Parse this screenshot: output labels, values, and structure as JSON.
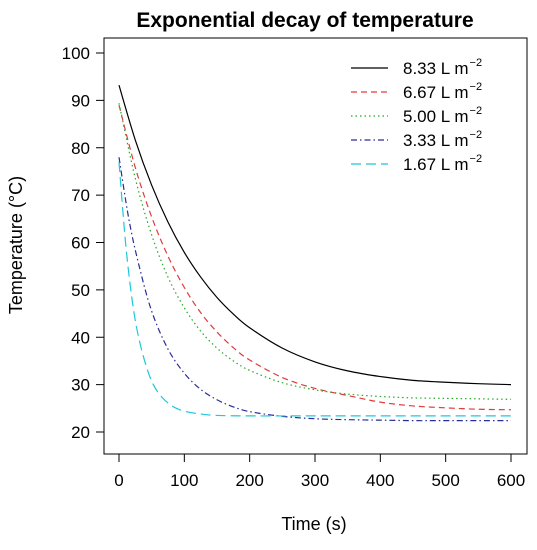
{
  "chart_data": {
    "type": "line",
    "title": "Exponential decay of temperature",
    "xlabel": "Time (s)",
    "ylabel": "Temperature (°C)",
    "xlim": [
      0,
      600
    ],
    "ylim": [
      20,
      100
    ],
    "xticks": [
      0,
      100,
      200,
      300,
      400,
      500,
      600
    ],
    "yticks": [
      20,
      30,
      40,
      50,
      60,
      70,
      80,
      90,
      100
    ],
    "grid": false,
    "legend_position": "top-right",
    "series": [
      {
        "name": "8.33 L m",
        "name_sup": "−2",
        "color": "#000000",
        "dash": "solid",
        "x": [
          0,
          25,
          50,
          75,
          100,
          125,
          150,
          175,
          200,
          250,
          300,
          350,
          400,
          450,
          500,
          550,
          600
        ],
        "y": [
          93.2,
          81.6,
          72.1,
          64.3,
          57.9,
          52.7,
          48.4,
          44.9,
          42.0,
          37.7,
          34.8,
          32.9,
          31.7,
          30.9,
          30.5,
          30.2,
          30.0
        ]
      },
      {
        "name": "6.67 L m",
        "name_sup": "−2",
        "color": "#e03c3c",
        "dash": "dashed",
        "x": [
          0,
          25,
          50,
          75,
          100,
          125,
          150,
          175,
          200,
          250,
          300,
          350,
          400,
          450,
          500,
          550,
          600
        ],
        "y": [
          89.0,
          75.8,
          65.4,
          57.1,
          50.5,
          45.2,
          41.1,
          37.8,
          35.2,
          31.5,
          29.2,
          27.7,
          26.3,
          25.5,
          25.1,
          24.8,
          24.7
        ]
      },
      {
        "name": "5.00 L m",
        "name_sup": "−2",
        "color": "#22aa22",
        "dash": "dotted",
        "x": [
          0,
          25,
          50,
          75,
          100,
          125,
          150,
          175,
          200,
          250,
          300,
          350,
          400,
          450,
          500,
          550,
          600
        ],
        "y": [
          89.4,
          73.5,
          61.6,
          52.7,
          46.2,
          41.3,
          37.7,
          35.0,
          33.0,
          30.4,
          28.9,
          28.0,
          27.5,
          27.2,
          27.1,
          27.0,
          26.9
        ]
      },
      {
        "name": "3.33 L m",
        "name_sup": "−2",
        "color": "#2b2b99",
        "dash": "dashdot",
        "x": [
          0,
          15,
          30,
          50,
          75,
          100,
          125,
          150,
          175,
          200,
          250,
          300,
          350,
          400,
          450,
          500,
          600
        ],
        "y": [
          78.0,
          65.0,
          55.5,
          45.5,
          37.5,
          32.4,
          29.0,
          26.8,
          25.3,
          24.3,
          23.3,
          22.8,
          22.6,
          22.5,
          22.4,
          22.4,
          22.4
        ]
      },
      {
        "name": "1.67 L m",
        "name_sup": "−2",
        "color": "#1ec8d8",
        "dash": "longdash",
        "x": [
          0,
          10,
          20,
          30,
          45,
          60,
          80,
          100,
          125,
          150,
          200,
          300,
          400,
          500,
          600
        ],
        "y": [
          77.0,
          60.0,
          48.0,
          40.0,
          32.5,
          28.3,
          25.6,
          24.4,
          23.8,
          23.5,
          23.4,
          23.4,
          23.4,
          23.4,
          23.4
        ]
      }
    ]
  }
}
